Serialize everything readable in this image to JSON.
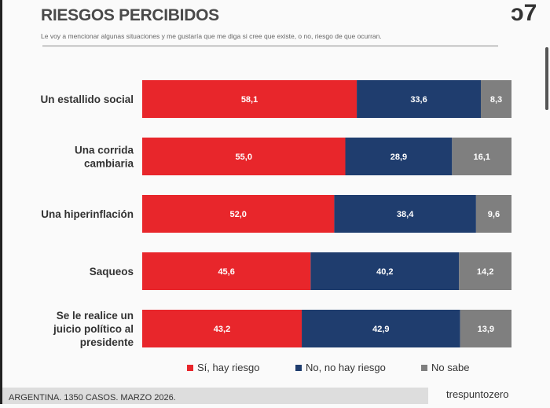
{
  "header": {
    "title": "RIESGOS PERCIBIDOS",
    "subtitle": "Le voy a mencionar algunas situaciones y me gustaría que me diga si cree que existe, o no, riesgo de que ocurran."
  },
  "chart_data": {
    "type": "bar",
    "orientation": "horizontal",
    "stacked": true,
    "categories": [
      [
        "Un estallido social"
      ],
      [
        "Una corrida",
        "cambiaria"
      ],
      [
        "Una hiperinflación"
      ],
      [
        "Saqueos"
      ],
      [
        "Se le realice un",
        "juicio político al",
        "presidente"
      ]
    ],
    "series": [
      {
        "name": "Sí, hay riesgo",
        "color": "#e8262b",
        "values": [
          58.1,
          55.0,
          52.0,
          45.6,
          43.2
        ]
      },
      {
        "name": "No, no hay riesgo",
        "color": "#1f3d6e",
        "values": [
          33.6,
          28.9,
          38.4,
          40.2,
          42.9
        ]
      },
      {
        "name": "No sabe",
        "color": "#7f7f7f",
        "values": [
          8.3,
          16.1,
          9.6,
          14.2,
          13.9
        ]
      }
    ],
    "xlim": [
      0,
      100
    ],
    "legend": "bottom",
    "grid": false
  },
  "footer": {
    "note": "ARGENTINA. 1350 CASOS. MARZO 2026.",
    "brand": "trespuntozero"
  }
}
